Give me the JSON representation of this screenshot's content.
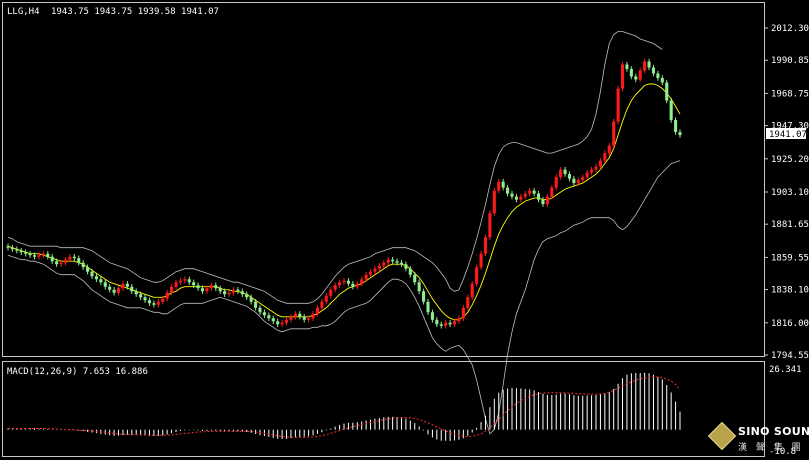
{
  "window": {
    "title": "LLG,H4",
    "ohlc": "1943.75 1943.75 1939.58 1941.07"
  },
  "price_axis": {
    "labels": [
      "2012.30",
      "1990.85",
      "1968.75",
      "1947.30",
      "1925.20",
      "1903.10",
      "1881.65",
      "1859.55",
      "1838.10",
      "1816.00",
      "1794.55"
    ],
    "current_price": "1941.07"
  },
  "macd_panel": {
    "title": "MACD(12,26,9) 7.653 16.886",
    "axis_top": "26.341",
    "axis_bottom": "-10.8"
  },
  "logo": {
    "title": "SINO SOUND",
    "subtitle": "漢 聲 集 團"
  },
  "colors": {
    "background": "#000000",
    "bull": "#ff1a1a",
    "bear": "#90ee90",
    "ma": "#ffff00",
    "bands": "#c0c0c0",
    "signal": "#ff3030"
  },
  "chart_data": [
    {
      "type": "candlestick",
      "title": "LLG,H4",
      "ylim": [
        1794.55,
        2012.3
      ],
      "close": [
        1866,
        1865,
        1864,
        1863,
        1862,
        1861,
        1860,
        1861,
        1862,
        1860,
        1857,
        1855,
        1856,
        1858,
        1860,
        1859,
        1856,
        1853,
        1850,
        1847,
        1845,
        1843,
        1840,
        1838,
        1836,
        1839,
        1842,
        1840,
        1837,
        1835,
        1833,
        1831,
        1829,
        1828,
        1830,
        1832,
        1836,
        1840,
        1843,
        1844,
        1845,
        1843,
        1841,
        1839,
        1837,
        1839,
        1841,
        1839,
        1837,
        1835,
        1836,
        1838,
        1837,
        1835,
        1833,
        1830,
        1826,
        1823,
        1821,
        1819,
        1817,
        1815,
        1816,
        1818,
        1820,
        1822,
        1820,
        1818,
        1819,
        1822,
        1826,
        1830,
        1834,
        1838,
        1841,
        1843,
        1844,
        1842,
        1840,
        1842,
        1845,
        1848,
        1850,
        1852,
        1854,
        1856,
        1858,
        1857,
        1856,
        1855,
        1852,
        1848,
        1843,
        1837,
        1830,
        1823,
        1818,
        1815,
        1814,
        1816,
        1815,
        1817,
        1819,
        1826,
        1833,
        1842,
        1853,
        1862,
        1873,
        1889,
        1904,
        1910,
        1906,
        1902,
        1900,
        1898,
        1900,
        1902,
        1904,
        1902,
        1898,
        1895,
        1900,
        1906,
        1913,
        1918,
        1915,
        1912,
        1909,
        1911,
        1913,
        1916,
        1918,
        1920,
        1924,
        1929,
        1934,
        1950,
        1972,
        1988,
        1985,
        1980,
        1978,
        1984,
        1990,
        1986,
        1982,
        1979,
        1976,
        1964,
        1951,
        1943,
        1941
      ],
      "ma": [
        1867,
        1866,
        1865,
        1864,
        1863,
        1862,
        1862,
        1862,
        1861,
        1860,
        1859,
        1858,
        1857,
        1857,
        1857,
        1857,
        1856,
        1855,
        1853,
        1851,
        1849,
        1847,
        1845,
        1843,
        1842,
        1841,
        1840,
        1839,
        1838,
        1837,
        1836,
        1835,
        1834,
        1833,
        1833,
        1833,
        1834,
        1836,
        1837,
        1839,
        1840,
        1840,
        1840,
        1840,
        1840,
        1840,
        1840,
        1840,
        1839,
        1838,
        1838,
        1837,
        1837,
        1836,
        1835,
        1833,
        1831,
        1829,
        1827,
        1825,
        1823,
        1821,
        1820,
        1820,
        1820,
        1820,
        1820,
        1820,
        1820,
        1821,
        1822,
        1824,
        1826,
        1829,
        1832,
        1835,
        1837,
        1839,
        1840,
        1841,
        1842,
        1844,
        1846,
        1848,
        1850,
        1852,
        1854,
        1855,
        1855,
        1855,
        1854,
        1852,
        1849,
        1846,
        1842,
        1837,
        1832,
        1828,
        1824,
        1821,
        1819,
        1818,
        1818,
        1820,
        1823,
        1828,
        1834,
        1841,
        1849,
        1858,
        1867,
        1875,
        1881,
        1886,
        1890,
        1893,
        1895,
        1897,
        1898,
        1899,
        1899,
        1898,
        1898,
        1899,
        1901,
        1903,
        1905,
        1906,
        1907,
        1908,
        1909,
        1911,
        1913,
        1915,
        1918,
        1922,
        1926,
        1932,
        1941,
        1950,
        1958,
        1964,
        1968,
        1971,
        1974,
        1975,
        1975,
        1974,
        1972,
        1969,
        1965,
        1960,
        1955
      ],
      "upper_band": [
        1873,
        1872,
        1870,
        1869,
        1868,
        1867,
        1867,
        1867,
        1867,
        1867,
        1867,
        1867,
        1866,
        1866,
        1866,
        1866,
        1866,
        1866,
        1865,
        1864,
        1862,
        1860,
        1858,
        1856,
        1855,
        1854,
        1853,
        1852,
        1850,
        1848,
        1846,
        1845,
        1844,
        1843,
        1843,
        1844,
        1846,
        1848,
        1850,
        1851,
        1852,
        1852,
        1852,
        1851,
        1850,
        1849,
        1848,
        1847,
        1846,
        1845,
        1844,
        1843,
        1843,
        1842,
        1841,
        1840,
        1839,
        1838,
        1837,
        1835,
        1833,
        1831,
        1830,
        1829,
        1829,
        1829,
        1829,
        1829,
        1829,
        1830,
        1832,
        1835,
        1839,
        1843,
        1847,
        1850,
        1853,
        1855,
        1856,
        1857,
        1858,
        1859,
        1860,
        1862,
        1863,
        1864,
        1865,
        1866,
        1866,
        1866,
        1866,
        1865,
        1864,
        1862,
        1860,
        1858,
        1856,
        1853,
        1849,
        1845,
        1839,
        1837,
        1838,
        1845,
        1853,
        1862,
        1872,
        1883,
        1895,
        1908,
        1920,
        1928,
        1933,
        1935,
        1936,
        1936,
        1935,
        1934,
        1933,
        1932,
        1931,
        1930,
        1929,
        1929,
        1930,
        1931,
        1932,
        1933,
        1934,
        1935,
        1937,
        1940,
        1945,
        1955,
        1970,
        1988,
        2002,
        2008,
        2010,
        2010,
        2009,
        2008,
        2007,
        2005,
        2004,
        2003,
        2002,
        2000,
        1998
      ],
      "lower_band": [
        1861,
        1860,
        1859,
        1858,
        1858,
        1857,
        1857,
        1856,
        1855,
        1853,
        1851,
        1849,
        1848,
        1848,
        1848,
        1848,
        1846,
        1844,
        1841,
        1838,
        1836,
        1834,
        1832,
        1830,
        1829,
        1828,
        1827,
        1826,
        1826,
        1826,
        1826,
        1825,
        1824,
        1823,
        1823,
        1822,
        1822,
        1824,
        1826,
        1828,
        1829,
        1829,
        1829,
        1829,
        1829,
        1830,
        1831,
        1832,
        1833,
        1832,
        1831,
        1830,
        1829,
        1828,
        1827,
        1825,
        1823,
        1820,
        1817,
        1815,
        1813,
        1811,
        1810,
        1811,
        1812,
        1812,
        1812,
        1812,
        1812,
        1813,
        1813,
        1814,
        1814,
        1815,
        1817,
        1820,
        1823,
        1825,
        1826,
        1827,
        1828,
        1829,
        1831,
        1834,
        1837,
        1840,
        1843,
        1845,
        1845,
        1844,
        1842,
        1838,
        1833,
        1827,
        1820,
        1813,
        1806,
        1802,
        1799,
        1797,
        1799,
        1800,
        1801,
        1798,
        1793,
        1788,
        1778,
        1765,
        1752,
        1742,
        1745,
        1756,
        1775,
        1795,
        1810,
        1822,
        1830,
        1838,
        1848,
        1858,
        1865,
        1870,
        1872,
        1873,
        1874,
        1876,
        1877,
        1879,
        1881,
        1882,
        1883,
        1885,
        1886,
        1886,
        1886,
        1886,
        1886,
        1884,
        1880,
        1878,
        1880,
        1884,
        1888,
        1893,
        1898,
        1903,
        1908,
        1913,
        1916,
        1919,
        1922,
        1923,
        1924
      ]
    },
    {
      "type": "bar",
      "title": "MACD(12,26,9) 7.653 16.886",
      "ylim": [
        -10.8,
        26.341
      ],
      "values": [
        0.5,
        0.5,
        0.6,
        0.6,
        0.6,
        0.6,
        0.6,
        0.5,
        0.4,
        0.3,
        0.2,
        0.0,
        -0.1,
        -0.1,
        -0.2,
        -0.2,
        -0.4,
        -0.6,
        -0.9,
        -1.2,
        -1.5,
        -1.8,
        -2.1,
        -2.4,
        -2.6,
        -2.5,
        -2.3,
        -2.2,
        -2.2,
        -2.3,
        -2.4,
        -2.5,
        -2.6,
        -2.7,
        -2.6,
        -2.4,
        -2.0,
        -1.5,
        -1.0,
        -0.6,
        -0.3,
        -0.2,
        -0.2,
        -0.3,
        -0.5,
        -0.5,
        -0.4,
        -0.5,
        -0.6,
        -0.8,
        -0.8,
        -0.7,
        -0.7,
        -0.8,
        -1.0,
        -1.3,
        -1.8,
        -2.3,
        -2.7,
        -3.1,
        -3.5,
        -3.9,
        -4.0,
        -3.9,
        -3.6,
        -3.2,
        -3.1,
        -3.0,
        -2.8,
        -2.4,
        -1.8,
        -1.1,
        -0.3,
        0.5,
        1.3,
        2.0,
        2.6,
        2.9,
        3.0,
        3.2,
        3.5,
        3.9,
        4.3,
        4.7,
        5.0,
        5.3,
        5.5,
        5.5,
        5.4,
        5.2,
        4.7,
        3.9,
        2.8,
        1.4,
        -0.3,
        -2.0,
        -3.3,
        -4.2,
        -4.7,
        -4.7,
        -4.8,
        -4.6,
        -4.3,
        -3.6,
        -2.6,
        -1.2,
        0.8,
        3.2,
        6.0,
        9.6,
        13.2,
        15.8,
        17.1,
        17.6,
        17.8,
        17.7,
        17.6,
        17.4,
        17.2,
        16.8,
        16.1,
        15.3,
        14.9,
        14.8,
        15.0,
        15.4,
        15.4,
        15.1,
        14.7,
        14.5,
        14.5,
        14.6,
        14.7,
        14.8,
        15.1,
        15.5,
        16.0,
        17.4,
        19.6,
        22.0,
        23.5,
        24.1,
        24.2,
        24.2,
        24.3,
        24.1,
        23.5,
        22.7,
        21.5,
        19.1,
        15.9,
        12.0,
        7.7
      ],
      "signal": [
        0.5,
        0.5,
        0.5,
        0.5,
        0.5,
        0.5,
        0.5,
        0.5,
        0.5,
        0.4,
        0.4,
        0.3,
        0.2,
        0.1,
        0.0,
        -0.1,
        -0.2,
        -0.3,
        -0.4,
        -0.6,
        -0.8,
        -1.0,
        -1.2,
        -1.4,
        -1.6,
        -1.8,
        -1.9,
        -2.0,
        -2.1,
        -2.1,
        -2.2,
        -2.2,
        -2.3,
        -2.4,
        -2.4,
        -2.4,
        -2.3,
        -2.2,
        -2.0,
        -1.8,
        -1.6,
        -1.4,
        -1.2,
        -1.0,
        -0.9,
        -0.8,
        -0.7,
        -0.7,
        -0.7,
        -0.7,
        -0.7,
        -0.7,
        -0.7,
        -0.7,
        -0.7,
        -0.8,
        -1.0,
        -1.3,
        -1.6,
        -2.0,
        -2.3,
        -2.6,
        -2.9,
        -3.1,
        -3.2,
        -3.3,
        -3.3,
        -3.3,
        -3.2,
        -3.1,
        -2.8,
        -2.5,
        -2.1,
        -1.6,
        -1.0,
        -0.4,
        0.2,
        0.8,
        1.3,
        1.8,
        2.3,
        2.7,
        3.1,
        3.5,
        3.9,
        4.3,
        4.6,
        4.9,
        5.1,
        5.2,
        5.2,
        5.1,
        4.8,
        4.4,
        3.7,
        2.9,
        2.1,
        1.2,
        0.3,
        -0.5,
        -1.2,
        -1.9,
        -2.4,
        -2.7,
        -2.9,
        -2.8,
        -2.4,
        -1.7,
        -0.6,
        0.8,
        2.5,
        4.4,
        6.3,
        8.1,
        9.7,
        11.1,
        12.4,
        13.4,
        14.2,
        14.9,
        15.4,
        15.6,
        15.7,
        15.8,
        15.8,
        15.8,
        15.7,
        15.6,
        15.5,
        15.4,
        15.3,
        15.2,
        15.2,
        15.2,
        15.3,
        15.5,
        16.0,
        16.8,
        17.7,
        18.7,
        19.6,
        20.4,
        21.1,
        21.7,
        22.1,
        22.4,
        22.5,
        22.5,
        22.3,
        21.7,
        20.7,
        19.3,
        16.9
      ]
    }
  ]
}
